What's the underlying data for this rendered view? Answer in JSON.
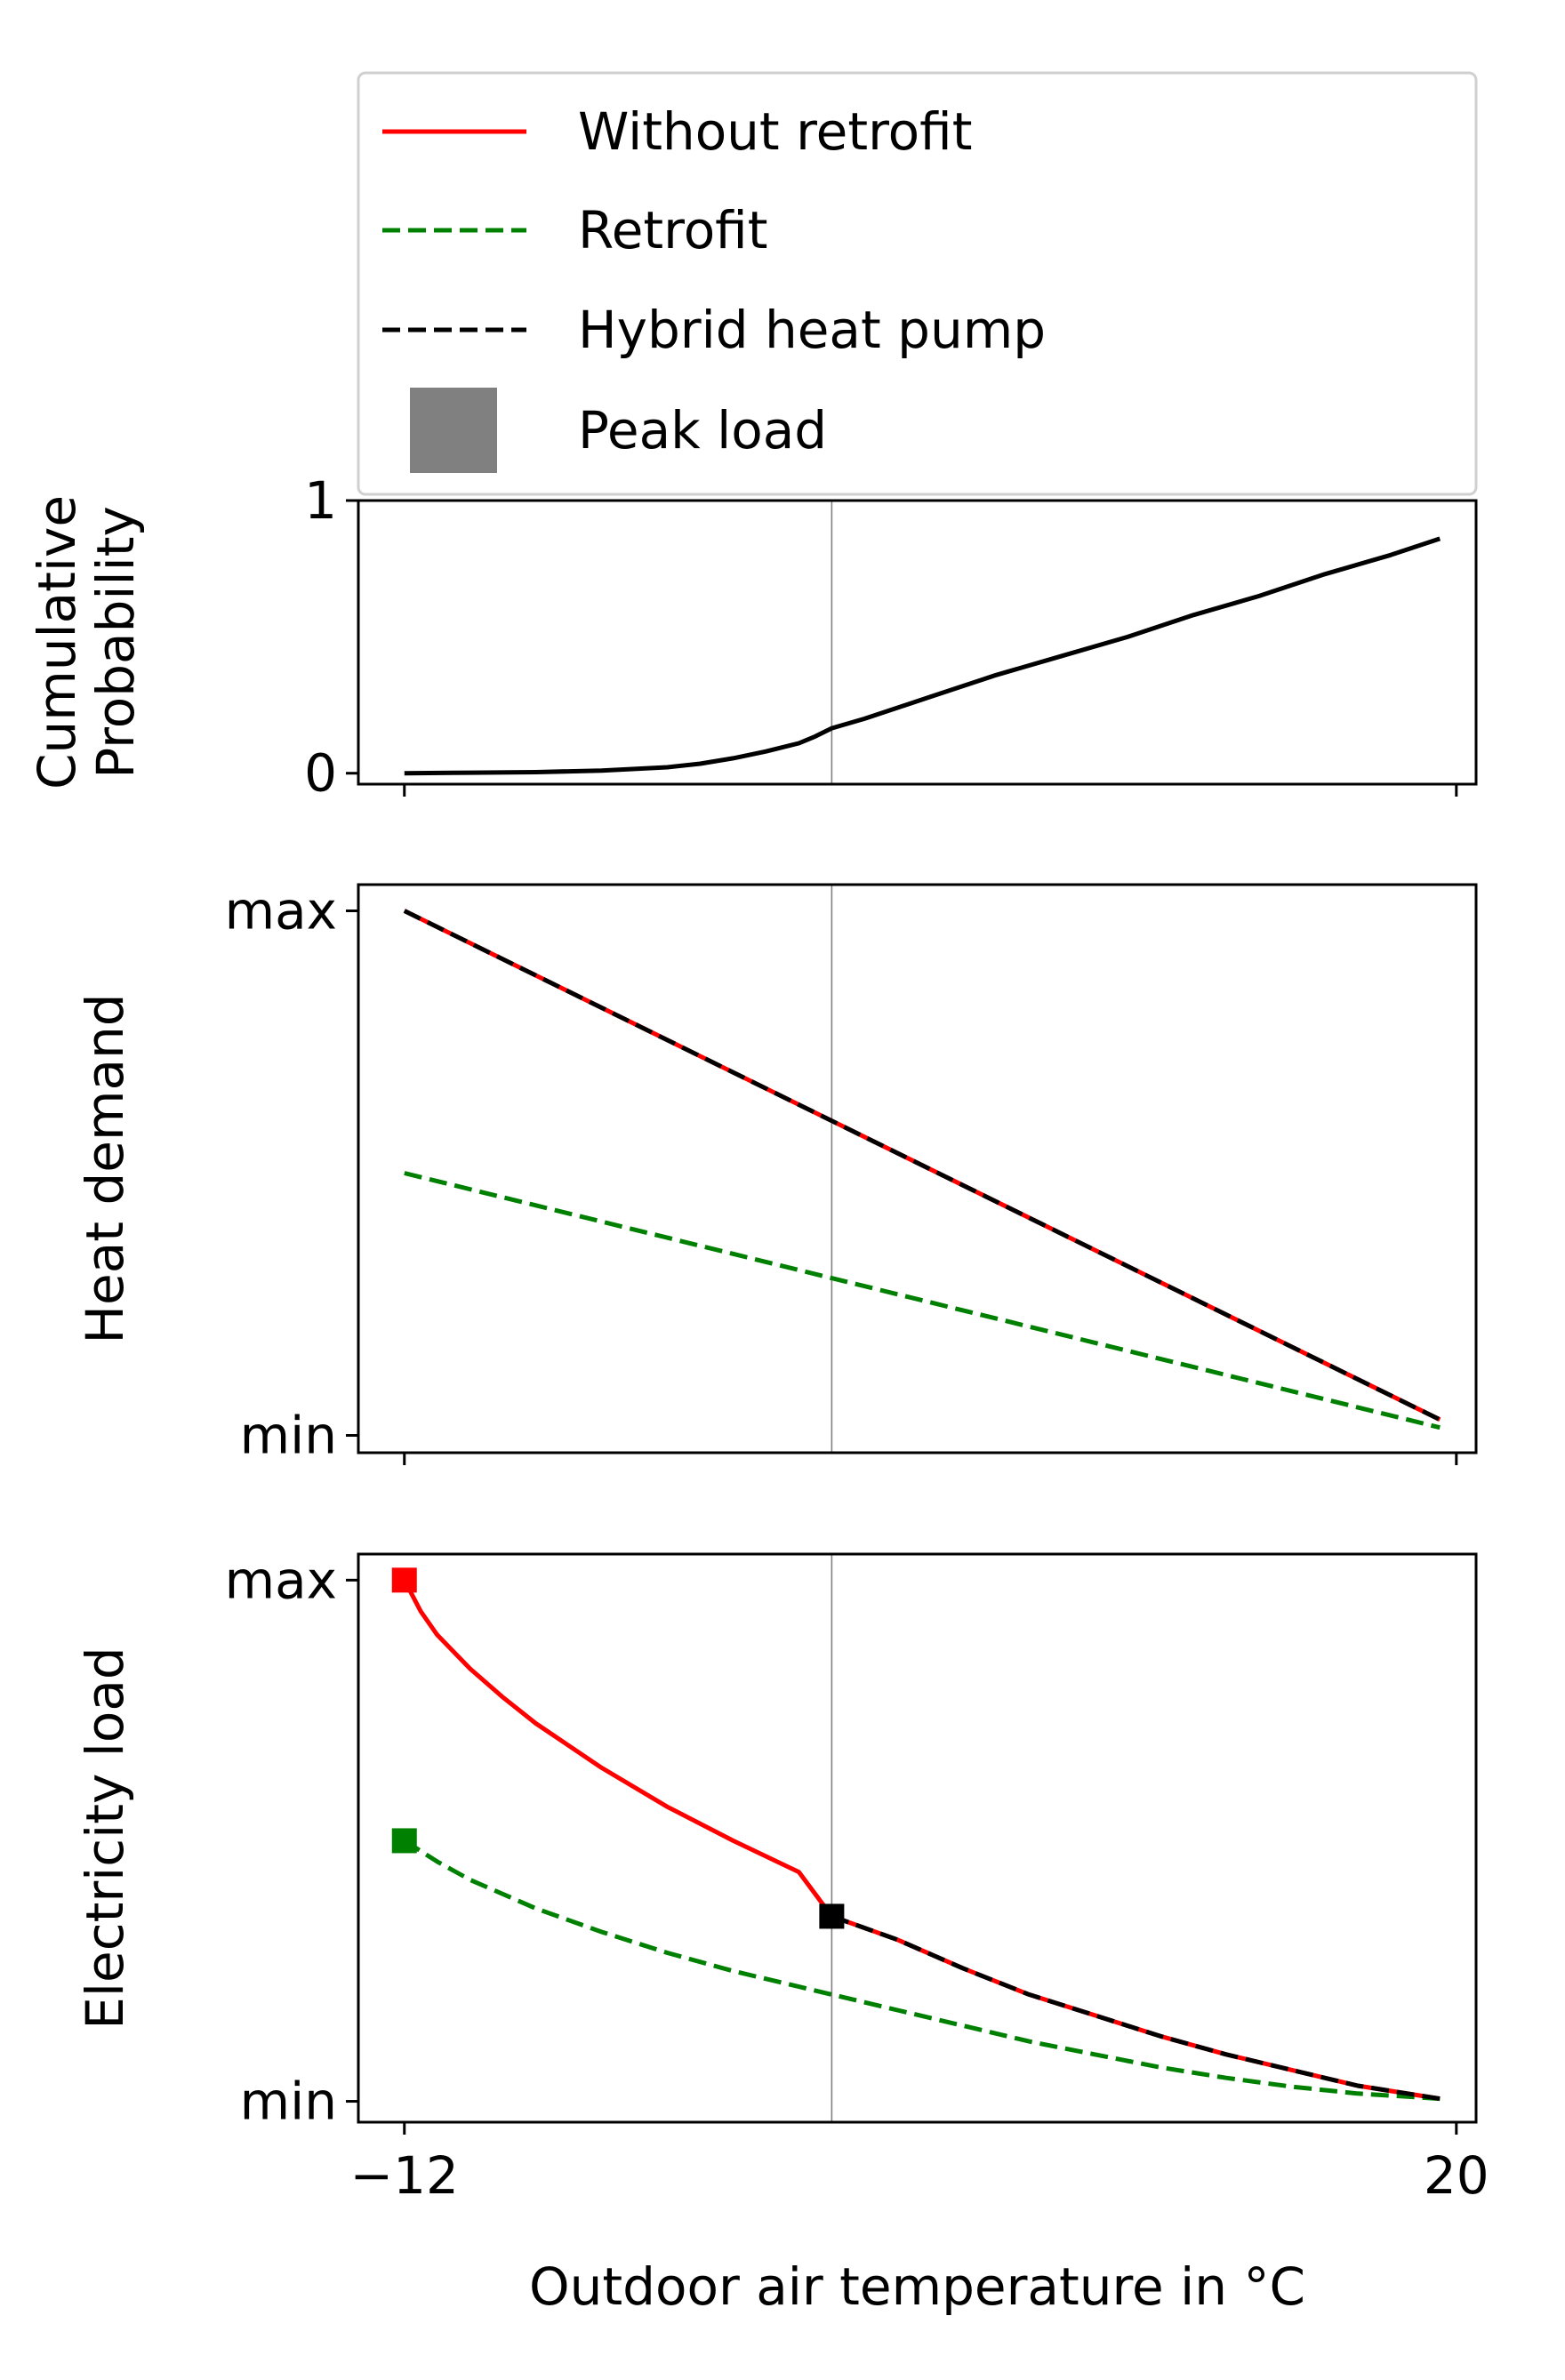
{
  "chart_data": {
    "type": "line",
    "legend": {
      "placement": "top",
      "entries": [
        {
          "label": "Without retrofit",
          "color": "#ff0000",
          "style": "solid"
        },
        {
          "label": "Retrofit",
          "color": "#008000",
          "style": "dashed"
        },
        {
          "label": "Hybrid heat pump",
          "color": "#000000",
          "style": "dashed"
        },
        {
          "label": "Peak load",
          "color": "#808080",
          "style": "patch"
        }
      ]
    },
    "xlabel": "Outdoor air temperature in °C",
    "xlim": [
      -13.4,
      20.6
    ],
    "xticks": [
      {
        "value": -12,
        "label": "−12"
      },
      {
        "value": 20,
        "label": "20"
      }
    ],
    "vline_x": 1,
    "vline_color": "#808080",
    "panels": [
      {
        "id": "probability",
        "ylabel": [
          "Cumulative",
          "Probability"
        ],
        "ylim": [
          -0.04,
          1.0
        ],
        "yticks": [
          {
            "value": 0,
            "label": "0"
          },
          {
            "value": 1,
            "label": "1"
          }
        ],
        "series": [
          {
            "name": "Cumulative probability",
            "color": "#000000",
            "style": "solid",
            "x": [
              -12,
              -10,
              -8,
              -6,
              -4,
              -3,
              -2,
              -1,
              0,
              0.5,
              1,
              2,
              4,
              6,
              8,
              10,
              12,
              14,
              16,
              18,
              19.5
            ],
            "y": [
              0,
              0.002,
              0.004,
              0.01,
              0.022,
              0.035,
              0.055,
              0.08,
              0.11,
              0.135,
              0.165,
              0.2,
              0.28,
              0.36,
              0.43,
              0.5,
              0.58,
              0.65,
              0.73,
              0.8,
              0.86
            ]
          }
        ]
      },
      {
        "id": "heat",
        "ylabel": [
          "Heat demand"
        ],
        "ylim": [
          -0.033,
          1.05
        ],
        "yticks": [
          {
            "value": 0,
            "label": "min"
          },
          {
            "value": 1,
            "label": "max"
          }
        ],
        "series": [
          {
            "name": "Without retrofit",
            "color": "#ff0000",
            "style": "solid",
            "x": [
              -12,
              19.5
            ],
            "y": [
              1.0,
              0.03
            ]
          },
          {
            "name": "Retrofit",
            "color": "#008000",
            "style": "dashed",
            "x": [
              -12,
              19.5
            ],
            "y": [
              0.5,
              0.015
            ]
          },
          {
            "name": "Hybrid heat pump",
            "color": "#000000",
            "style": "dashed",
            "x": [
              -12,
              19.5
            ],
            "y": [
              1.0,
              0.03
            ]
          }
        ]
      },
      {
        "id": "electricity",
        "ylabel": [
          "Electricity load"
        ],
        "ylim": [
          -0.04,
          1.05
        ],
        "yticks": [
          {
            "value": 0,
            "label": "min"
          },
          {
            "value": 1,
            "label": "max"
          }
        ],
        "series": [
          {
            "name": "Without retrofit",
            "color": "#ff0000",
            "style": "solid",
            "x": [
              -12,
              -11.5,
              -11,
              -10,
              -9,
              -8,
              -6,
              -4,
              -2,
              0,
              1,
              3,
              5,
              7,
              9,
              11,
              13,
              15,
              17,
              19.5
            ],
            "y": [
              1.0,
              0.94,
              0.895,
              0.83,
              0.775,
              0.725,
              0.64,
              0.565,
              0.5,
              0.44,
              0.355,
              0.31,
              0.255,
              0.205,
              0.165,
              0.125,
              0.09,
              0.06,
              0.03,
              0.005
            ]
          },
          {
            "name": "Retrofit",
            "color": "#008000",
            "style": "dashed",
            "x": [
              -12,
              -11,
              -10,
              -8,
              -6,
              -4,
              -2,
              0,
              1,
              3,
              5,
              7,
              9,
              11,
              13,
              15,
              17,
              19.5
            ],
            "y": [
              0.5,
              0.46,
              0.425,
              0.37,
              0.325,
              0.285,
              0.25,
              0.22,
              0.205,
              0.175,
              0.145,
              0.115,
              0.09,
              0.065,
              0.045,
              0.028,
              0.015,
              0.005
            ]
          },
          {
            "name": "Hybrid heat pump",
            "color": "#000000",
            "style": "dashed",
            "x": [
              1,
              3,
              5,
              7,
              9,
              11,
              13,
              15,
              17,
              19.5
            ],
            "y": [
              0.355,
              0.31,
              0.255,
              0.205,
              0.165,
              0.125,
              0.09,
              0.06,
              0.03,
              0.005
            ]
          }
        ],
        "peak_markers": [
          {
            "name": "Without retrofit",
            "x": -12,
            "y": 1.0,
            "color": "#ff0000"
          },
          {
            "name": "Retrofit",
            "x": -12,
            "y": 0.5,
            "color": "#008000"
          },
          {
            "name": "Hybrid heat pump",
            "x": 1,
            "y": 0.355,
            "color": "#000000"
          }
        ]
      }
    ]
  }
}
